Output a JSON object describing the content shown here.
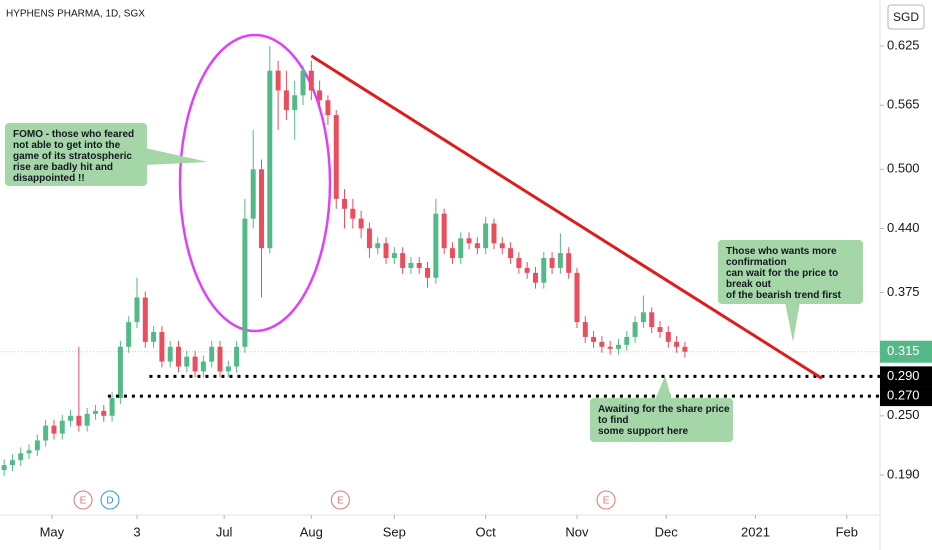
{
  "chart_data": {
    "type": "candlestick",
    "title": "HYPHENS PHARMA, 1D, SGX",
    "currency": "SGD",
    "up_color": "#53b987",
    "down_color": "#eb4d5c",
    "x": [
      1,
      3,
      5,
      7,
      9,
      11,
      13,
      15,
      17,
      19,
      21,
      23,
      25,
      27,
      29,
      31,
      33,
      35,
      37,
      39,
      41,
      43,
      45,
      47,
      49,
      51,
      53,
      55,
      57,
      59,
      61,
      63,
      65,
      67,
      69,
      71,
      73,
      75,
      77,
      79,
      81,
      83,
      85,
      87,
      89,
      91,
      93,
      95,
      97,
      99,
      101,
      103,
      105,
      107,
      109,
      111,
      113,
      115,
      117,
      119,
      121,
      123,
      125,
      127,
      129,
      131,
      133,
      135,
      137,
      139,
      141,
      143,
      145,
      147,
      149,
      151,
      153,
      155,
      157,
      159,
      161,
      163,
      165
    ],
    "open": [
      0.195,
      0.2,
      0.205,
      0.212,
      0.215,
      0.225,
      0.24,
      0.232,
      0.245,
      0.25,
      0.24,
      0.252,
      0.255,
      0.25,
      0.268,
      0.32,
      0.345,
      0.37,
      0.325,
      0.335,
      0.305,
      0.32,
      0.3,
      0.31,
      0.295,
      0.305,
      0.32,
      0.295,
      0.3,
      0.32,
      0.45,
      0.5,
      0.42,
      0.6,
      0.58,
      0.56,
      0.575,
      0.6,
      0.58,
      0.57,
      0.555,
      0.47,
      0.46,
      0.45,
      0.44,
      0.42,
      0.425,
      0.41,
      0.415,
      0.4,
      0.405,
      0.4,
      0.39,
      0.455,
      0.42,
      0.41,
      0.43,
      0.425,
      0.42,
      0.445,
      0.425,
      0.42,
      0.41,
      0.4,
      0.395,
      0.385,
      0.41,
      0.4,
      0.415,
      0.395,
      0.345,
      0.33,
      0.325,
      0.32,
      0.318,
      0.322,
      0.33,
      0.345,
      0.355,
      0.34,
      0.335,
      0.325,
      0.32
    ],
    "high": [
      0.206,
      0.211,
      0.218,
      0.221,
      0.231,
      0.246,
      0.246,
      0.251,
      0.256,
      0.32,
      0.258,
      0.261,
      0.261,
      0.274,
      0.326,
      0.351,
      0.39,
      0.376,
      0.341,
      0.341,
      0.326,
      0.326,
      0.316,
      0.316,
      0.311,
      0.326,
      0.326,
      0.306,
      0.326,
      0.47,
      0.54,
      0.51,
      0.625,
      0.61,
      0.6,
      0.59,
      0.605,
      0.61,
      0.59,
      0.575,
      0.56,
      0.48,
      0.47,
      0.458,
      0.446,
      0.431,
      0.431,
      0.421,
      0.421,
      0.411,
      0.411,
      0.406,
      0.47,
      0.46,
      0.426,
      0.436,
      0.436,
      0.431,
      0.452,
      0.45,
      0.431,
      0.426,
      0.416,
      0.406,
      0.401,
      0.416,
      0.416,
      0.435,
      0.421,
      0.4,
      0.351,
      0.336,
      0.331,
      0.326,
      0.328,
      0.336,
      0.351,
      0.372,
      0.36,
      0.346,
      0.341,
      0.331,
      0.325
    ],
    "low": [
      0.189,
      0.194,
      0.199,
      0.206,
      0.209,
      0.219,
      0.226,
      0.226,
      0.239,
      0.234,
      0.234,
      0.246,
      0.244,
      0.244,
      0.262,
      0.314,
      0.339,
      0.319,
      0.319,
      0.299,
      0.299,
      0.294,
      0.294,
      0.289,
      0.289,
      0.299,
      0.289,
      0.289,
      0.294,
      0.314,
      0.44,
      0.37,
      0.415,
      0.54,
      0.55,
      0.53,
      0.565,
      0.57,
      0.56,
      0.545,
      0.46,
      0.44,
      0.44,
      0.43,
      0.41,
      0.414,
      0.404,
      0.404,
      0.394,
      0.394,
      0.394,
      0.38,
      0.384,
      0.414,
      0.404,
      0.404,
      0.419,
      0.414,
      0.414,
      0.419,
      0.414,
      0.404,
      0.394,
      0.389,
      0.379,
      0.379,
      0.394,
      0.394,
      0.389,
      0.339,
      0.324,
      0.319,
      0.314,
      0.312,
      0.312,
      0.316,
      0.324,
      0.339,
      0.334,
      0.329,
      0.319,
      0.314,
      0.309
    ],
    "close": [
      0.2,
      0.205,
      0.212,
      0.215,
      0.225,
      0.24,
      0.232,
      0.245,
      0.25,
      0.24,
      0.252,
      0.255,
      0.25,
      0.268,
      0.32,
      0.345,
      0.37,
      0.325,
      0.335,
      0.305,
      0.32,
      0.3,
      0.31,
      0.295,
      0.305,
      0.32,
      0.295,
      0.3,
      0.32,
      0.45,
      0.5,
      0.42,
      0.6,
      0.58,
      0.56,
      0.575,
      0.6,
      0.58,
      0.57,
      0.555,
      0.47,
      0.46,
      0.45,
      0.44,
      0.42,
      0.425,
      0.41,
      0.415,
      0.4,
      0.405,
      0.4,
      0.39,
      0.455,
      0.42,
      0.41,
      0.43,
      0.425,
      0.42,
      0.445,
      0.425,
      0.42,
      0.41,
      0.4,
      0.395,
      0.385,
      0.41,
      0.4,
      0.415,
      0.395,
      0.345,
      0.33,
      0.325,
      0.32,
      0.318,
      0.322,
      0.33,
      0.345,
      0.355,
      0.34,
      0.335,
      0.325,
      0.32,
      0.315
    ],
    "xlim": [
      0,
      212
    ],
    "xticks": [
      {
        "value": 12.5,
        "label": "May"
      },
      {
        "value": 33,
        "label": "3"
      },
      {
        "value": 54,
        "label": "Jul"
      },
      {
        "value": 75,
        "label": "Aug"
      },
      {
        "value": 95,
        "label": "Sep"
      },
      {
        "value": 117,
        "label": "Oct"
      },
      {
        "value": 139,
        "label": "Nov"
      },
      {
        "value": 160.5,
        "label": "Dec"
      },
      {
        "value": 182,
        "label": "2021"
      },
      {
        "value": 204,
        "label": "Feb"
      }
    ],
    "ylim": [
      0.1494,
      0.6717
    ],
    "yticks": [
      0.625,
      0.565,
      {
        "value": 0.5,
        "label": "0.500"
      },
      {
        "value": 0.44,
        "label": "0.440"
      },
      0.375,
      {
        "value": 0.25,
        "label": "0.250"
      },
      {
        "value": 0.19,
        "label": "0.190"
      }
    ],
    "grid": false,
    "last_price": 0.315,
    "last_price_color": "#53b987",
    "support_lines": [
      {
        "value": 0.29,
        "label": "0.290",
        "x_start": 36
      },
      {
        "value": 0.27,
        "label": "0.270",
        "x_start": 26
      }
    ],
    "trend_line": {
      "x": [
        75,
        198
      ],
      "y": [
        0.615,
        0.288
      ],
      "color": "#e31a1a"
    },
    "events": [
      {
        "label": "E",
        "x": 20,
        "color": "#e57373"
      },
      {
        "label": "D",
        "x": 26.5,
        "color": "#2196f3"
      },
      {
        "label": "E",
        "x": 82,
        "color": "#e57373"
      },
      {
        "label": "E",
        "x": 146,
        "color": "#e57373"
      }
    ],
    "annotations": [
      {
        "lines": [
          "FOMO - those who feared",
          "not able to get into the",
          "game of its stratospheric",
          "rise are badly hit and",
          "disappointed !!"
        ]
      },
      {
        "lines": [
          "Those who wants more",
          "confirmation",
          "can wait for the price to",
          "break out",
          "of the bearish trend first"
        ]
      },
      {
        "lines": [
          "Awaiting for the share price",
          "to find",
          "some support here"
        ]
      }
    ]
  }
}
